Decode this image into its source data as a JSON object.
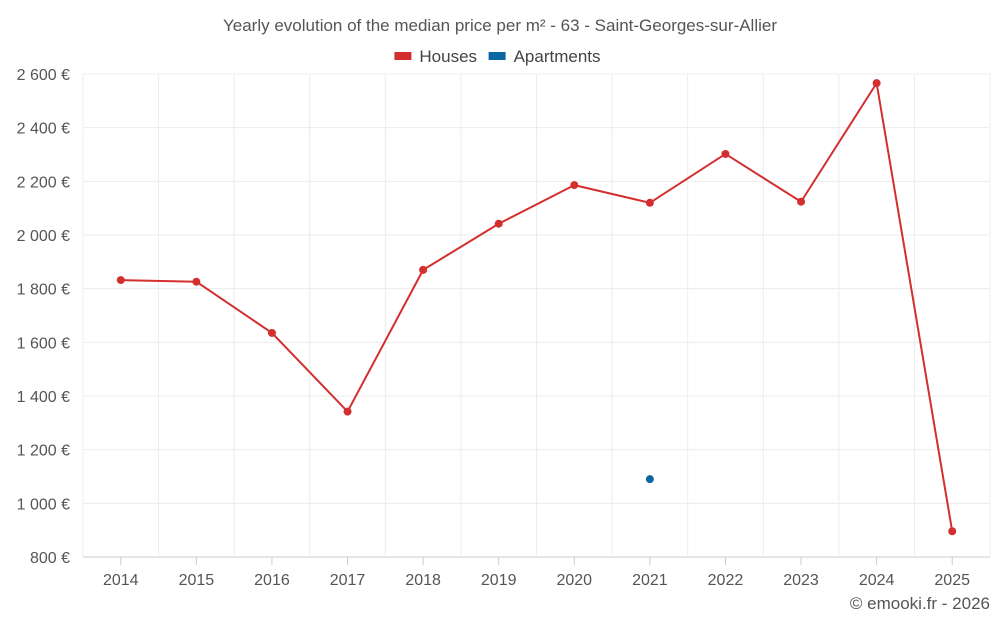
{
  "chart_data": {
    "type": "line",
    "title": "Yearly evolution of the median price per m² - 63 - Saint-Georges-sur-Allier",
    "xlabel": "",
    "ylabel": "",
    "categories": [
      "2014",
      "2015",
      "2016",
      "2017",
      "2018",
      "2019",
      "2020",
      "2021",
      "2022",
      "2023",
      "2024",
      "2025"
    ],
    "ylim": [
      800,
      2600
    ],
    "yticks": [
      800,
      1000,
      1200,
      1400,
      1600,
      1800,
      2000,
      2200,
      2400,
      2600
    ],
    "ytick_labels": [
      "800 €",
      "1 000 €",
      "1 200 €",
      "1 400 €",
      "1 600 €",
      "1 800 €",
      "2 000 €",
      "2 200 €",
      "2 400 €",
      "2 600 €"
    ],
    "grid": true,
    "legend_position": "top-center",
    "series": [
      {
        "name": "Houses",
        "color": "#d32f2f",
        "values": [
          1832,
          1826,
          1635,
          1342,
          1870,
          2042,
          2186,
          2120,
          2302,
          2124,
          2566,
          896
        ]
      },
      {
        "name": "Apartments",
        "color": "#0a67a3",
        "values": [
          null,
          null,
          null,
          null,
          null,
          null,
          null,
          1090,
          null,
          null,
          null,
          null
        ]
      }
    ],
    "credit": "© emooki.fr - 2026"
  }
}
